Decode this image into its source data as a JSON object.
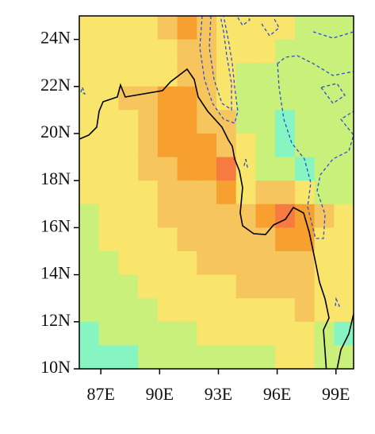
{
  "chart_data": {
    "type": "grid-map",
    "xlim": [
      85.9,
      99.9
    ],
    "ylim": [
      10,
      25
    ],
    "xticks": [
      {
        "value": 87,
        "label": "87E"
      },
      {
        "value": 90,
        "label": "90E"
      },
      {
        "value": 93,
        "label": "93E"
      },
      {
        "value": 96,
        "label": "96E"
      },
      {
        "value": 99,
        "label": "99E"
      }
    ],
    "yticks": [
      {
        "value": 10,
        "label": "10N"
      },
      {
        "value": 12,
        "label": "12N"
      },
      {
        "value": 14,
        "label": "14N"
      },
      {
        "value": 16,
        "label": "16N"
      },
      {
        "value": 18,
        "label": "18N"
      },
      {
        "value": 20,
        "label": "20N"
      },
      {
        "value": 22,
        "label": "22N"
      },
      {
        "value": 24,
        "label": "24N"
      }
    ],
    "cells": [
      [
        "#f9e46c",
        "#f9e46c",
        "#f9e46c",
        "#f9e46c",
        "#f7c55e",
        "#f7a030",
        "#f7c55e",
        "#f9e46c",
        "#f9e46c",
        "#f9e46c",
        "#f9e46c",
        "#c9f07a",
        "#c9f07a",
        "#c9f07a"
      ],
      [
        "#f9e46c",
        "#f9e46c",
        "#f9e46c",
        "#f9e46c",
        "#f9e46c",
        "#f7c55e",
        "#f7c55e",
        "#f9e46c",
        "#f9e46c",
        "#f9e46c",
        "#c9f07a",
        "#c9f07a",
        "#c9f07a",
        "#c9f07a"
      ],
      [
        "#f9e46c",
        "#f9e46c",
        "#f9e46c",
        "#f9e46c",
        "#f9e46c",
        "#f7c55e",
        "#f7c55e",
        "#f9e46c",
        "#c9f07a",
        "#c9f07a",
        "#c9f07a",
        "#c9f07a",
        "#c9f07a",
        "#c9f07a"
      ],
      [
        "#f9e46c",
        "#f9e46c",
        "#f7c55e",
        "#f7c55e",
        "#f7a030",
        "#f7a030",
        "#f7c55e",
        "#f9e46c",
        "#c9f07a",
        "#c9f07a",
        "#c9f07a",
        "#c9f07a",
        "#c9f07a",
        "#c9f07a"
      ],
      [
        "#f9e46c",
        "#f9e46c",
        "#f9e46c",
        "#f7c55e",
        "#f7a030",
        "#f7a030",
        "#f7c55e",
        "#f7c55e",
        "#c9f07a",
        "#c9f07a",
        "#86f5c2",
        "#c9f07a",
        "#c9f07a",
        "#c9f07a"
      ],
      [
        "#f9e46c",
        "#f9e46c",
        "#f9e46c",
        "#f7c55e",
        "#f7a030",
        "#f7a030",
        "#f7a030",
        "#f7c55e",
        "#f9e46c",
        "#c9f07a",
        "#86f5c2",
        "#c9f07a",
        "#c9f07a",
        "#c9f07a"
      ],
      [
        "#f9e46c",
        "#f9e46c",
        "#f9e46c",
        "#f7c55e",
        "#f7c55e",
        "#f7a030",
        "#f7a030",
        "#f77a40",
        "#f9e46c",
        "#c9f07a",
        "#c9f07a",
        "#86f5c2",
        "#c9f07a",
        "#c9f07a"
      ],
      [
        "#f9e46c",
        "#f9e46c",
        "#f9e46c",
        "#f9e46c",
        "#f7c55e",
        "#f7c55e",
        "#f7c55e",
        "#f7a030",
        "#f9e46c",
        "#f7c55e",
        "#f7c55e",
        "#f9e46c",
        "#c9f07a",
        "#c9f07a"
      ],
      [
        "#c9f07a",
        "#f9e46c",
        "#f9e46c",
        "#f9e46c",
        "#f7c55e",
        "#f7c55e",
        "#f7c55e",
        "#f7c55e",
        "#f7c55e",
        "#f7a030",
        "#f77a40",
        "#f7a030",
        "#f7c55e",
        "#f9e46c"
      ],
      [
        "#c9f07a",
        "#f9e46c",
        "#f9e46c",
        "#f9e46c",
        "#f9e46c",
        "#f7c55e",
        "#f7c55e",
        "#f7c55e",
        "#f7c55e",
        "#f7c55e",
        "#f7a030",
        "#f7a030",
        "#f9e46c",
        "#f9e46c"
      ],
      [
        "#c9f07a",
        "#c9f07a",
        "#f9e46c",
        "#f9e46c",
        "#f9e46c",
        "#f9e46c",
        "#f7c55e",
        "#f7c55e",
        "#f7c55e",
        "#f7c55e",
        "#f7c55e",
        "#f7c55e",
        "#f9e46c",
        "#f9e46c"
      ],
      [
        "#c9f07a",
        "#c9f07a",
        "#c9f07a",
        "#f9e46c",
        "#f9e46c",
        "#f9e46c",
        "#f9e46c",
        "#f9e46c",
        "#f7c55e",
        "#f7c55e",
        "#f7c55e",
        "#f7c55e",
        "#f9e46c",
        "#f9e46c"
      ],
      [
        "#c9f07a",
        "#c9f07a",
        "#c9f07a",
        "#c9f07a",
        "#f9e46c",
        "#f9e46c",
        "#f9e46c",
        "#f9e46c",
        "#f9e46c",
        "#f9e46c",
        "#f9e46c",
        "#f7c55e",
        "#f9e46c",
        "#f9e46c"
      ],
      [
        "#86f5c2",
        "#c9f07a",
        "#c9f07a",
        "#c9f07a",
        "#c9f07a",
        "#c9f07a",
        "#f9e46c",
        "#f9e46c",
        "#f9e46c",
        "#f9e46c",
        "#f9e46c",
        "#f9e46c",
        "#c9f07a",
        "#86f5c2"
      ],
      [
        "#86f5c2",
        "#86f5c2",
        "#86f5c2",
        "#c9f07a",
        "#c9f07a",
        "#c9f07a",
        "#c9f07a",
        "#c9f07a",
        "#c9f07a",
        "#c9f07a",
        "#f9e46c",
        "#f9e46c",
        "#c9f07a",
        "#c9f07a"
      ]
    ]
  }
}
